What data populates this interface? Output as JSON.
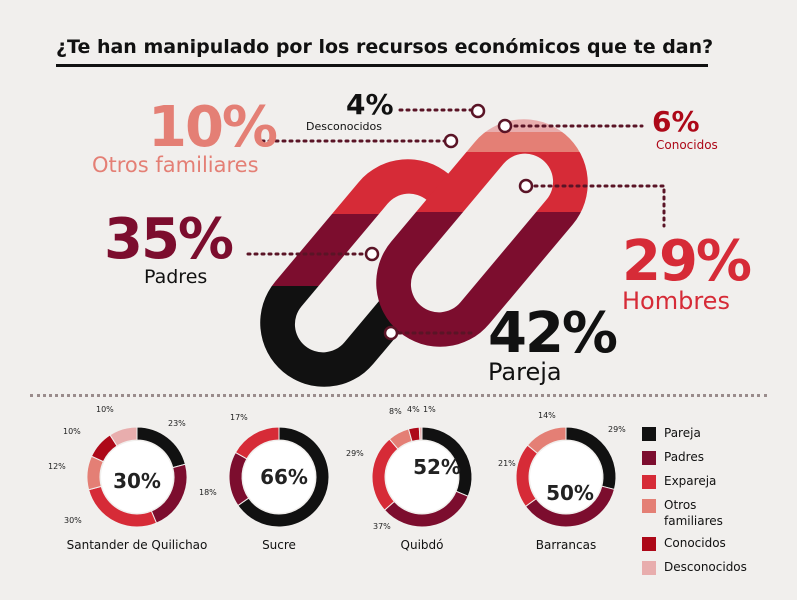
{
  "title": "¿Te han manipulado por los recursos económicos que te dan?",
  "colors": {
    "Pareja": "#111111",
    "Padres": "#7c0d2e",
    "Expareja": "#d62b37",
    "Otros familiares": "#e47f75",
    "Conocidos": "#ad0818",
    "Desconocidos": "#e8adad"
  },
  "main": [
    {
      "label": "Desconocidos",
      "value": "4%"
    },
    {
      "label": "Otros familiares",
      "value": "10%"
    },
    {
      "label": "Conocidos",
      "value": "6%"
    },
    {
      "label": "Padres",
      "value": "35%"
    },
    {
      "label": "Hombres",
      "value": "29%"
    },
    {
      "label": "Pareja",
      "value": "42%"
    }
  ],
  "chart_data": [
    {
      "type": "pie",
      "title": "Santander de Quilichao",
      "center_label": "30%",
      "categories": [
        "Pareja",
        "Padres",
        "Expareja",
        "Otros familiares",
        "Conocidos",
        "Desconocidos"
      ],
      "values": [
        23,
        25,
        30,
        12,
        10,
        10
      ],
      "labels": [
        "23%",
        "",
        "30%",
        "12%",
        "10%",
        "10%"
      ]
    },
    {
      "type": "pie",
      "title": "Sucre",
      "center_label": "66%",
      "categories": [
        "Pareja",
        "Padres",
        "Expareja"
      ],
      "values": [
        66,
        18,
        17
      ],
      "labels": [
        "",
        "18%",
        "17%"
      ]
    },
    {
      "type": "pie",
      "title": "Quibdó",
      "center_label": "52%",
      "categories": [
        "Pareja",
        "Padres",
        "Expareja",
        "Otros familiares",
        "Conocidos",
        "Desconocidos"
      ],
      "values": [
        36,
        37,
        29,
        8,
        4,
        1
      ],
      "labels": [
        "",
        "37%",
        "29%",
        "8%",
        "4%",
        "1%"
      ]
    },
    {
      "type": "pie",
      "title": "Barrancas",
      "center_label": "50%",
      "categories": [
        "Pareja",
        "Padres",
        "Expareja",
        "Otros familiares"
      ],
      "values": [
        29,
        36,
        21,
        14
      ],
      "labels": [
        "29%",
        "",
        "21%",
        "14%"
      ]
    }
  ],
  "legend": [
    "Pareja",
    "Padres",
    "Expareja",
    "Otros familiares",
    "Conocidos",
    "Desconocidos"
  ]
}
